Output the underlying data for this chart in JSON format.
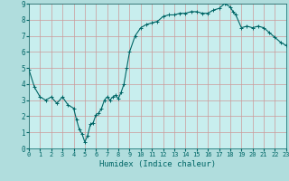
{
  "x": [
    0,
    0.5,
    1,
    1.5,
    2,
    2.5,
    3,
    3.5,
    4,
    4.25,
    4.5,
    4.75,
    5,
    5.25,
    5.5,
    5.75,
    6,
    6.25,
    6.5,
    6.75,
    7,
    7.25,
    7.5,
    7.75,
    8,
    8.25,
    8.5,
    8.75,
    9,
    9.5,
    10,
    10.5,
    11,
    11.5,
    12,
    12.5,
    13,
    13.5,
    14,
    14.5,
    15,
    15.5,
    16,
    16.5,
    17,
    17.5,
    18,
    18.25,
    18.5,
    19,
    19.5,
    20,
    20.5,
    21,
    21.5,
    22,
    22.5,
    23
  ],
  "y": [
    4.9,
    3.8,
    3.2,
    3.0,
    3.2,
    2.8,
    3.2,
    2.7,
    2.5,
    1.8,
    1.2,
    0.9,
    0.4,
    0.8,
    1.5,
    1.6,
    2.1,
    2.2,
    2.5,
    3.0,
    3.2,
    3.0,
    3.2,
    3.3,
    3.1,
    3.5,
    4.0,
    5.0,
    6.0,
    7.0,
    7.5,
    7.7,
    7.8,
    7.9,
    8.2,
    8.3,
    8.3,
    8.4,
    8.4,
    8.5,
    8.5,
    8.4,
    8.4,
    8.6,
    8.7,
    9.0,
    8.8,
    8.5,
    8.3,
    7.5,
    7.6,
    7.5,
    7.6,
    7.5,
    7.2,
    6.9,
    6.6,
    6.4
  ],
  "xlabel": "Humidex (Indice chaleur)",
  "xlim": [
    0,
    23
  ],
  "ylim": [
    0,
    9
  ],
  "xticks": [
    0,
    1,
    2,
    3,
    4,
    5,
    6,
    7,
    8,
    9,
    10,
    11,
    12,
    13,
    14,
    15,
    16,
    17,
    18,
    19,
    20,
    21,
    22,
    23
  ],
  "yticks": [
    0,
    1,
    2,
    3,
    4,
    5,
    6,
    7,
    8,
    9
  ],
  "line_color": "#006666",
  "marker_color": "#006666",
  "bg_color": "#b0dddd",
  "grid_color": "#cc9999",
  "plot_bg": "#c8eeee"
}
